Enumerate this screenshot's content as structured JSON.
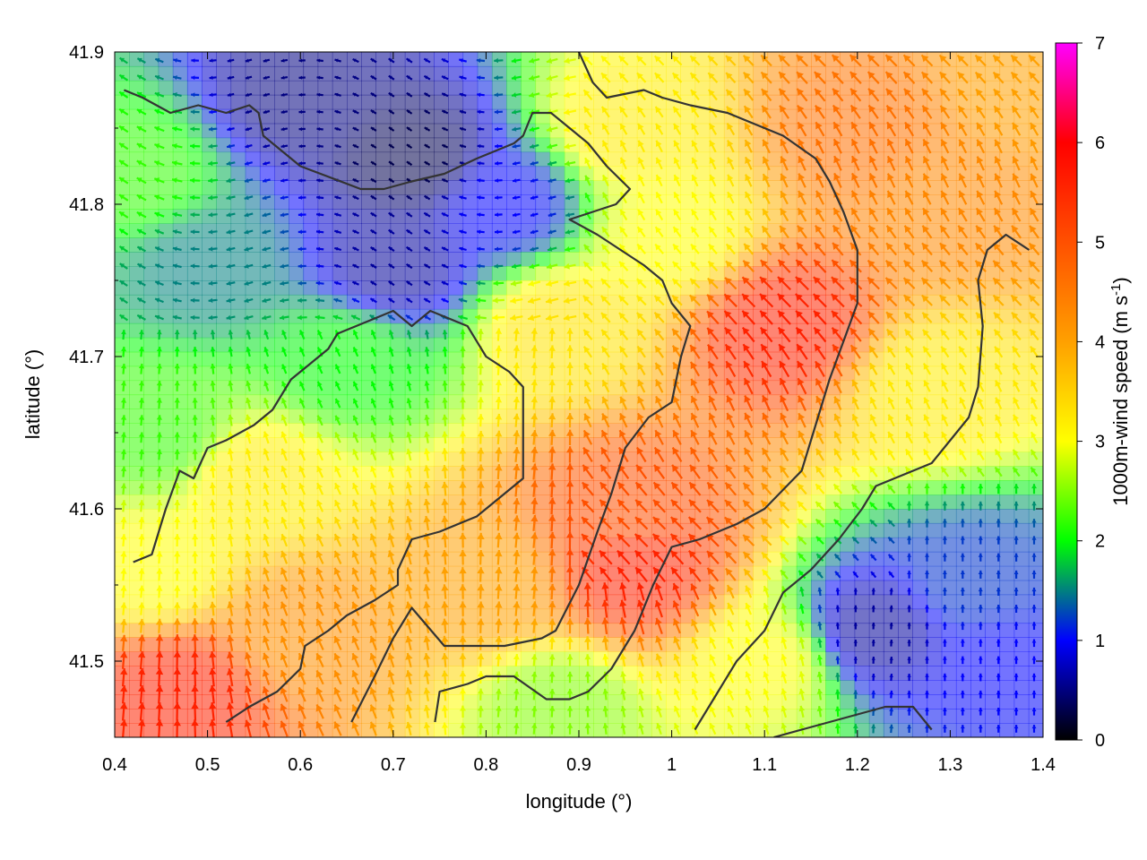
{
  "chart_data": {
    "type": "heatmap",
    "subtype": "wind vector field with contour overlay",
    "xlabel": "longitude (°)",
    "ylabel": "latitude (°)",
    "colorbar_label": "1000m-wind speed (m s",
    "colorbar_label_sup": "-1",
    "colorbar_label_end": ")",
    "xlim": [
      0.4,
      1.4
    ],
    "ylim": [
      41.45,
      41.9
    ],
    "x_ticks": [
      "0.4",
      "0.5",
      "0.6",
      "0.7",
      "0.8",
      "0.9",
      "1",
      "1.1",
      "1.2",
      "1.3",
      "1.4"
    ],
    "y_ticks": [
      "41.5",
      "41.6",
      "41.7",
      "41.8",
      "41.9"
    ],
    "colorbar_range": [
      0,
      7
    ],
    "colorbar_ticks": [
      "0",
      "1",
      "2",
      "3",
      "4",
      "5",
      "6",
      "7"
    ],
    "colormap": [
      "#000000",
      "#0000ff",
      "#00ff00",
      "#ffff00",
      "#ff0000",
      "#ff00ff"
    ],
    "grid": false,
    "legend": "colorbar-right",
    "wind_speed_regions": [
      {
        "lon": 0.6,
        "lat": 41.87,
        "speed": 0.5
      },
      {
        "lon": 0.72,
        "lat": 41.83,
        "speed": 0.3
      },
      {
        "lon": 0.7,
        "lat": 41.76,
        "speed": 0.6
      },
      {
        "lon": 0.82,
        "lat": 41.8,
        "speed": 1.0
      },
      {
        "lon": 0.5,
        "lat": 41.76,
        "speed": 1.5
      },
      {
        "lon": 0.42,
        "lat": 41.82,
        "speed": 2.2
      },
      {
        "lon": 0.45,
        "lat": 41.65,
        "speed": 2.2
      },
      {
        "lon": 0.65,
        "lat": 41.7,
        "speed": 2.0
      },
      {
        "lon": 0.55,
        "lat": 41.62,
        "speed": 3.2
      },
      {
        "lon": 0.88,
        "lat": 41.72,
        "speed": 3.3
      },
      {
        "lon": 0.95,
        "lat": 41.85,
        "speed": 3.2
      },
      {
        "lon": 1.0,
        "lat": 41.78,
        "speed": 3.0
      },
      {
        "lon": 0.8,
        "lat": 41.55,
        "speed": 4.0
      },
      {
        "lon": 0.95,
        "lat": 41.6,
        "speed": 5.0
      },
      {
        "lon": 0.96,
        "lat": 41.56,
        "speed": 5.6
      },
      {
        "lon": 1.12,
        "lat": 41.72,
        "speed": 5.6
      },
      {
        "lon": 1.2,
        "lat": 41.85,
        "speed": 4.6
      },
      {
        "lon": 1.3,
        "lat": 41.8,
        "speed": 4.3
      },
      {
        "lon": 1.38,
        "lat": 41.88,
        "speed": 4.0
      },
      {
        "lon": 1.28,
        "lat": 41.68,
        "speed": 3.2
      },
      {
        "lon": 1.32,
        "lat": 41.55,
        "speed": 1.2
      },
      {
        "lon": 1.22,
        "lat": 41.52,
        "speed": 0.6
      },
      {
        "lon": 1.35,
        "lat": 41.5,
        "speed": 1.0
      },
      {
        "lon": 1.1,
        "lat": 41.5,
        "speed": 3.0
      },
      {
        "lon": 0.88,
        "lat": 41.47,
        "speed": 2.5
      },
      {
        "lon": 0.47,
        "lat": 41.48,
        "speed": 5.6
      },
      {
        "lon": 0.6,
        "lat": 41.52,
        "speed": 4.2
      },
      {
        "lon": 0.44,
        "lat": 41.56,
        "speed": 3.0
      }
    ],
    "contour_lines": [
      [
        [
          0.42,
          41.565
        ],
        [
          0.44,
          41.57
        ],
        [
          0.455,
          41.6
        ],
        [
          0.47,
          41.625
        ],
        [
          0.485,
          41.62
        ],
        [
          0.5,
          41.64
        ],
        [
          0.52,
          41.645
        ],
        [
          0.55,
          41.655
        ],
        [
          0.57,
          41.665
        ],
        [
          0.59,
          41.685
        ],
        [
          0.61,
          41.695
        ],
        [
          0.63,
          41.705
        ],
        [
          0.64,
          41.715
        ],
        [
          0.66,
          41.72
        ],
        [
          0.68,
          41.725
        ],
        [
          0.7,
          41.73
        ],
        [
          0.72,
          41.72
        ],
        [
          0.74,
          41.73
        ],
        [
          0.78,
          41.72
        ],
        [
          0.8,
          41.7
        ],
        [
          0.825,
          41.69
        ],
        [
          0.84,
          41.68
        ],
        [
          0.84,
          41.62
        ],
        [
          0.82,
          41.61
        ],
        [
          0.79,
          41.595
        ],
        [
          0.75,
          41.585
        ],
        [
          0.72,
          41.58
        ],
        [
          0.705,
          41.56
        ],
        [
          0.705,
          41.55
        ],
        [
          0.68,
          41.54
        ],
        [
          0.65,
          41.53
        ],
        [
          0.63,
          41.52
        ],
        [
          0.605,
          41.51
        ],
        [
          0.6,
          41.495
        ],
        [
          0.575,
          41.48
        ],
        [
          0.545,
          41.47
        ],
        [
          0.52,
          41.46
        ]
      ],
      [
        [
          0.655,
          41.46
        ],
        [
          0.68,
          41.49
        ],
        [
          0.7,
          41.515
        ],
        [
          0.72,
          41.535
        ],
        [
          0.755,
          41.51
        ],
        [
          0.82,
          41.51
        ],
        [
          0.86,
          41.515
        ],
        [
          0.875,
          41.52
        ],
        [
          0.9,
          41.55
        ],
        [
          0.92,
          41.585
        ],
        [
          0.935,
          41.61
        ],
        [
          0.95,
          41.64
        ],
        [
          0.975,
          41.66
        ],
        [
          1.0,
          41.67
        ],
        [
          1.01,
          41.7
        ],
        [
          1.02,
          41.72
        ],
        [
          1.0,
          41.735
        ],
        [
          0.99,
          41.75
        ],
        [
          0.97,
          41.76
        ],
        [
          0.92,
          41.78
        ],
        [
          0.89,
          41.79
        ],
        [
          0.94,
          41.8
        ],
        [
          0.955,
          41.81
        ],
        [
          0.93,
          41.825
        ],
        [
          0.91,
          41.84
        ],
        [
          0.88,
          41.855
        ],
        [
          0.87,
          41.86
        ],
        [
          0.85,
          41.86
        ],
        [
          0.84,
          41.845
        ],
        [
          0.83,
          41.84
        ],
        [
          0.79,
          41.83
        ],
        [
          0.755,
          41.82
        ],
        [
          0.72,
          41.815
        ],
        [
          0.69,
          41.81
        ],
        [
          0.665,
          41.81
        ],
        [
          0.6,
          41.825
        ],
        [
          0.58,
          41.835
        ],
        [
          0.56,
          41.845
        ],
        [
          0.555,
          41.86
        ],
        [
          0.545,
          41.865
        ],
        [
          0.52,
          41.86
        ],
        [
          0.49,
          41.865
        ],
        [
          0.46,
          41.86
        ],
        [
          0.43,
          41.87
        ],
        [
          0.41,
          41.875
        ]
      ],
      [
        [
          0.745,
          41.46
        ],
        [
          0.75,
          41.48
        ],
        [
          0.78,
          41.485
        ],
        [
          0.8,
          41.49
        ],
        [
          0.83,
          41.49
        ],
        [
          0.865,
          41.475
        ],
        [
          0.89,
          41.475
        ],
        [
          0.91,
          41.48
        ],
        [
          0.935,
          41.495
        ],
        [
          0.96,
          41.52
        ],
        [
          0.98,
          41.55
        ],
        [
          1.0,
          41.575
        ],
        [
          1.03,
          41.58
        ],
        [
          1.07,
          41.59
        ],
        [
          1.1,
          41.6
        ],
        [
          1.14,
          41.625
        ],
        [
          1.155,
          41.655
        ],
        [
          1.17,
          41.685
        ],
        [
          1.185,
          41.71
        ],
        [
          1.2,
          41.735
        ],
        [
          1.2,
          41.77
        ],
        [
          1.185,
          41.795
        ],
        [
          1.17,
          41.815
        ],
        [
          1.155,
          41.83
        ],
        [
          1.12,
          41.845
        ],
        [
          1.08,
          41.855
        ],
        [
          1.06,
          41.86
        ],
        [
          1.02,
          41.865
        ],
        [
          0.99,
          41.87
        ],
        [
          0.97,
          41.875
        ],
        [
          0.93,
          41.87
        ],
        [
          0.915,
          41.88
        ],
        [
          0.9,
          41.9
        ]
      ],
      [
        [
          1.025,
          41.455
        ],
        [
          1.05,
          41.48
        ],
        [
          1.07,
          41.5
        ],
        [
          1.1,
          41.52
        ],
        [
          1.12,
          41.545
        ],
        [
          1.15,
          41.56
        ],
        [
          1.18,
          41.58
        ],
        [
          1.205,
          41.6
        ],
        [
          1.22,
          41.615
        ],
        [
          1.24,
          41.62
        ],
        [
          1.26,
          41.625
        ],
        [
          1.28,
          41.63
        ],
        [
          1.3,
          41.645
        ],
        [
          1.32,
          41.66
        ],
        [
          1.33,
          41.68
        ],
        [
          1.335,
          41.72
        ],
        [
          1.33,
          41.75
        ],
        [
          1.34,
          41.77
        ],
        [
          1.36,
          41.78
        ],
        [
          1.385,
          41.77
        ]
      ],
      [
        [
          1.11,
          41.45
        ],
        [
          1.14,
          41.455
        ],
        [
          1.17,
          41.46
        ],
        [
          1.2,
          41.465
        ],
        [
          1.23,
          41.47
        ],
        [
          1.26,
          41.47
        ],
        [
          1.28,
          41.455
        ]
      ]
    ]
  }
}
